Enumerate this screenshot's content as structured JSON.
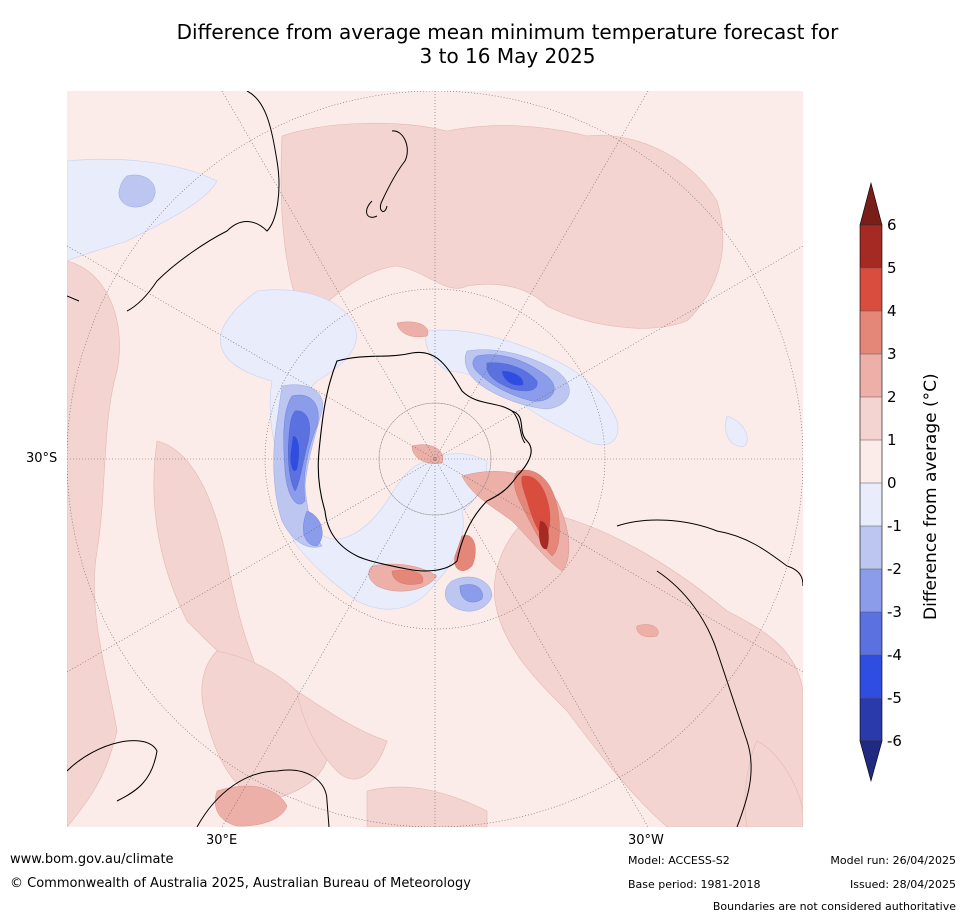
{
  "title_line1": "Difference from average mean minimum temperature forecast for",
  "title_line2": "3 to 16 May 2025",
  "map": {
    "lat_label": "30°S",
    "lon_label_east": "30°E",
    "lon_label_west": "30°W",
    "colors": {
      "ocean_light_pos": "#fbece9",
      "pos_1_2": "#f4d4d0",
      "pos_2_3": "#ecb0a8",
      "pos_3_4": "#e48779",
      "pos_4_5": "#d94d3f",
      "pos_5_6": "#a52a24",
      "neg_0_1": "#e8ecfb",
      "neg_1_2": "#bcc6f1",
      "neg_2_3": "#8a9cea",
      "neg_3_4": "#5b71e0",
      "neg_4_5": "#2f4de0",
      "neg_5_6": "#2a3aaa"
    }
  },
  "colorbar": {
    "label": "Difference from average (°C)",
    "ticks": [
      "6",
      "5",
      "4",
      "3",
      "2",
      "1",
      "0",
      "-1",
      "-2",
      "-3",
      "-4",
      "-5",
      "-6"
    ],
    "colors": [
      "#7a1e1a",
      "#a52a24",
      "#d94d3f",
      "#e48779",
      "#ecb0a8",
      "#f4d4d0",
      "#fbece9",
      "#e8ecfb",
      "#bcc6f1",
      "#8a9cea",
      "#5b71e0",
      "#2f4de0",
      "#2a3aaa",
      "#1f2a80"
    ]
  },
  "footer": {
    "website": "www.bom.gov.au/climate",
    "copyright": "© Commonwealth of Australia 2025, Australian Bureau of Meteorology",
    "model": "Model: ACCESS-S2",
    "base_period": "Base period: 1981-2018",
    "model_run": "Model run: 26/04/2025",
    "issued": "Issued: 28/04/2025",
    "disclaimer": "Boundaries are not considered authoritative"
  }
}
